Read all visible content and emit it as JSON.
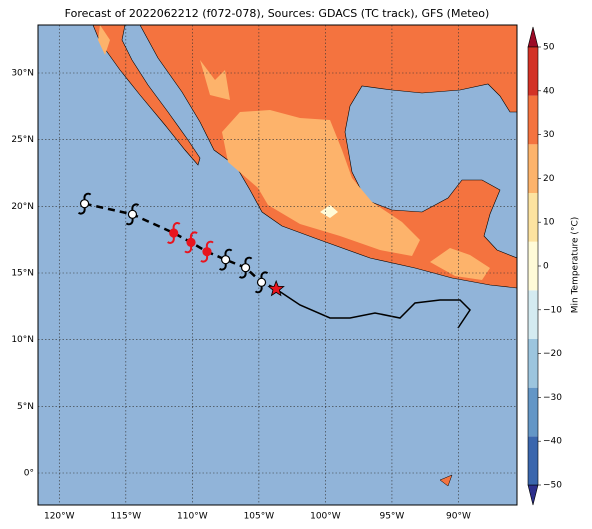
{
  "chart_data": {
    "type": "map",
    "title": "Forecast of 2022062212 (f072-078), Sources: GDACS (TC track), GFS (Meteo)",
    "xlim": [
      -121.6,
      -85.6
    ],
    "ylim": [
      -2.4,
      33.6
    ],
    "xticks": [
      {
        "value": -120,
        "label": "120°W"
      },
      {
        "value": -115,
        "label": "115°W"
      },
      {
        "value": -110,
        "label": "110°W"
      },
      {
        "value": -105,
        "label": "105°W"
      },
      {
        "value": -100,
        "label": "100°W"
      },
      {
        "value": -95,
        "label": "95°W"
      },
      {
        "value": -90,
        "label": "90°W"
      }
    ],
    "yticks": [
      {
        "value": 0,
        "label": "0°"
      },
      {
        "value": 5,
        "label": "5°N"
      },
      {
        "value": 10,
        "label": "10°N"
      },
      {
        "value": 15,
        "label": "15°N"
      },
      {
        "value": 20,
        "label": "20°N"
      },
      {
        "value": 25,
        "label": "25°N"
      },
      {
        "value": 30,
        "label": "30°N"
      }
    ],
    "grid": true,
    "colorbar": {
      "label": "Min Temperature (°C)",
      "lim": [
        -50,
        50
      ],
      "ticks": [
        {
          "value": -50,
          "label": "−50"
        },
        {
          "value": -40,
          "label": "−40"
        },
        {
          "value": -30,
          "label": "−30"
        },
        {
          "value": -20,
          "label": "−20"
        },
        {
          "value": -10,
          "label": "−10"
        },
        0,
        10,
        20,
        30,
        40,
        50
      ],
      "colors": [
        "#2c2f8c",
        "#3a66ad",
        "#6396c6",
        "#9cc5de",
        "#d4ebf1",
        "#fffbd8",
        "#fde3a0",
        "#fdb36b",
        "#f4733f",
        "#d33226",
        "#9b0a26"
      ]
    },
    "track": [
      {
        "lon": -118.1,
        "lat": 20.2,
        "color": "#ffffff"
      },
      {
        "lon": -114.5,
        "lat": 19.4,
        "color": "#ffffff"
      },
      {
        "lon": -111.4,
        "lat": 18.0,
        "color": "#e8141e"
      },
      {
        "lon": -110.1,
        "lat": 17.3,
        "color": "#e8141e"
      },
      {
        "lon": -108.9,
        "lat": 16.6,
        "color": "#e8141e"
      },
      {
        "lon": -107.5,
        "lat": 16.0,
        "color": "#ffffff"
      },
      {
        "lon": -106.0,
        "lat": 15.4,
        "color": "#ffffff"
      },
      {
        "lon": -104.8,
        "lat": 14.3,
        "color": "#ffffff"
      }
    ],
    "current": {
      "lon": -103.7,
      "lat": 13.8,
      "color": "#e8141e"
    }
  }
}
